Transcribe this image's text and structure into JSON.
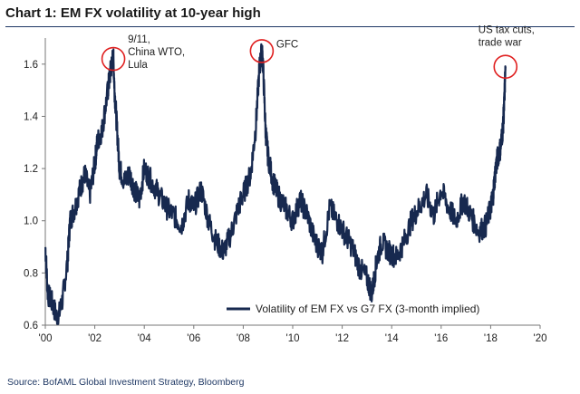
{
  "title": "Chart 1: EM FX volatility at 10-year high",
  "source": "Source: BofAML Global Investment Strategy, Bloomberg",
  "colors": {
    "series": "#17294f",
    "annotation_circle": "#e02020",
    "title_rule": "#1f3864"
  },
  "chart_data": {
    "type": "line",
    "xlim": [
      2000,
      2020
    ],
    "ylim": [
      0.6,
      1.7
    ],
    "grid": false,
    "legend_position": "bottom-right",
    "x_ticks": [
      2000,
      2002,
      2004,
      2006,
      2008,
      2010,
      2012,
      2014,
      2016,
      2018,
      2020
    ],
    "x_tick_labels": [
      "'00",
      "'02",
      "'04",
      "'06",
      "'08",
      "'10",
      "'12",
      "'14",
      "'16",
      "'18",
      "'20"
    ],
    "y_ticks": [
      0.6,
      0.8,
      1.0,
      1.2,
      1.4,
      1.6
    ],
    "y_tick_labels": [
      "0.6",
      "0.8",
      "1.0",
      "1.2",
      "1.4",
      "1.6"
    ],
    "series": [
      {
        "name": "Volatility of EM FX vs G7 FX (3-month implied)",
        "x": [
          2000.0,
          2000.1,
          2000.3,
          2000.5,
          2000.7,
          2000.9,
          2001.0,
          2001.2,
          2001.4,
          2001.6,
          2001.8,
          2002.0,
          2002.1,
          2002.3,
          2002.5,
          2002.6,
          2002.7,
          2002.75,
          2002.8,
          2002.9,
          2003.0,
          2003.2,
          2003.4,
          2003.6,
          2003.8,
          2004.0,
          2004.3,
          2004.6,
          2004.9,
          2005.2,
          2005.5,
          2005.8,
          2006.0,
          2006.3,
          2006.6,
          2006.9,
          2007.2,
          2007.5,
          2007.8,
          2008.0,
          2008.3,
          2008.5,
          2008.65,
          2008.75,
          2008.8,
          2008.9,
          2009.0,
          2009.2,
          2009.4,
          2009.7,
          2010.0,
          2010.3,
          2010.6,
          2010.9,
          2011.2,
          2011.5,
          2011.8,
          2012.1,
          2012.4,
          2012.7,
          2013.0,
          2013.2,
          2013.4,
          2013.6,
          2013.9,
          2014.2,
          2014.5,
          2014.8,
          2015.1,
          2015.4,
          2015.7,
          2016.0,
          2016.3,
          2016.6,
          2016.9,
          2017.2,
          2017.5,
          2017.8,
          2018.0,
          2018.1,
          2018.2,
          2018.3,
          2018.4,
          2018.5,
          2018.55,
          2018.6
        ],
        "y": [
          0.9,
          0.72,
          0.68,
          0.62,
          0.7,
          0.85,
          1.0,
          1.05,
          1.12,
          1.18,
          1.1,
          1.22,
          1.3,
          1.35,
          1.48,
          1.55,
          1.61,
          1.62,
          1.5,
          1.35,
          1.2,
          1.15,
          1.18,
          1.12,
          1.08,
          1.2,
          1.15,
          1.1,
          1.05,
          1.02,
          0.98,
          1.08,
          1.05,
          1.12,
          1.0,
          0.92,
          0.88,
          0.95,
          1.05,
          1.1,
          1.18,
          1.35,
          1.58,
          1.65,
          1.6,
          1.35,
          1.25,
          1.15,
          1.1,
          1.05,
          1.0,
          1.08,
          1.02,
          0.92,
          0.88,
          1.05,
          1.0,
          0.95,
          0.9,
          0.82,
          0.78,
          0.72,
          0.85,
          0.92,
          0.88,
          0.86,
          0.92,
          1.0,
          1.05,
          1.1,
          1.02,
          1.12,
          1.05,
          1.0,
          1.08,
          1.02,
          0.96,
          0.98,
          1.05,
          1.1,
          1.2,
          1.25,
          1.28,
          1.36,
          1.45,
          1.59
        ]
      }
    ],
    "annotations": [
      {
        "text": [
          "9/11,",
          "China WTO,",
          "Lula"
        ],
        "x": 2002.75,
        "y": 1.62
      },
      {
        "text": [
          "GFC"
        ],
        "x": 2008.75,
        "y": 1.65
      },
      {
        "text": [
          "US tax cuts,",
          "trade war"
        ],
        "x": 2018.6,
        "y": 1.59
      }
    ]
  }
}
